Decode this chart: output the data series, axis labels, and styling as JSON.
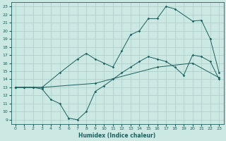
{
  "xlabel": "Humidex (Indice chaleur)",
  "bg_color": "#cce8e2",
  "grid_color": "#aacec8",
  "line_color": "#1a6060",
  "xlim": [
    -0.5,
    23.5
  ],
  "ylim": [
    8.5,
    23.5
  ],
  "xticks": [
    0,
    1,
    2,
    3,
    4,
    5,
    6,
    7,
    8,
    9,
    10,
    11,
    12,
    13,
    14,
    15,
    16,
    17,
    18,
    19,
    20,
    21,
    22,
    23
  ],
  "yticks": [
    9,
    10,
    11,
    12,
    13,
    14,
    15,
    16,
    17,
    18,
    19,
    20,
    21,
    22,
    23
  ],
  "line1_x": [
    0,
    1,
    2,
    3,
    4,
    5,
    6,
    7,
    8,
    9,
    10,
    11,
    12,
    13,
    14,
    15,
    16,
    17,
    18,
    19,
    20,
    21,
    22,
    23
  ],
  "line1_y": [
    13.0,
    13.0,
    13.0,
    12.8,
    11.5,
    11.0,
    9.2,
    9.0,
    10.0,
    12.5,
    13.2,
    14.0,
    14.8,
    15.5,
    16.2,
    16.8,
    16.5,
    16.2,
    15.5,
    14.5,
    17.0,
    16.8,
    16.2,
    14.0
  ],
  "line2_x": [
    0,
    3,
    9,
    16,
    20,
    23
  ],
  "line2_y": [
    13.0,
    13.0,
    13.5,
    15.5,
    16.0,
    14.2
  ],
  "line3_x": [
    0,
    1,
    2,
    3,
    5,
    7,
    8,
    9,
    10,
    11,
    12,
    13,
    14,
    15,
    16,
    17,
    18,
    20,
    21,
    22,
    23
  ],
  "line3_y": [
    13.0,
    13.0,
    13.0,
    13.0,
    14.8,
    16.5,
    17.2,
    16.5,
    16.0,
    15.5,
    17.5,
    19.5,
    20.0,
    21.5,
    21.5,
    23.0,
    22.7,
    21.2,
    21.3,
    19.0,
    14.8
  ]
}
